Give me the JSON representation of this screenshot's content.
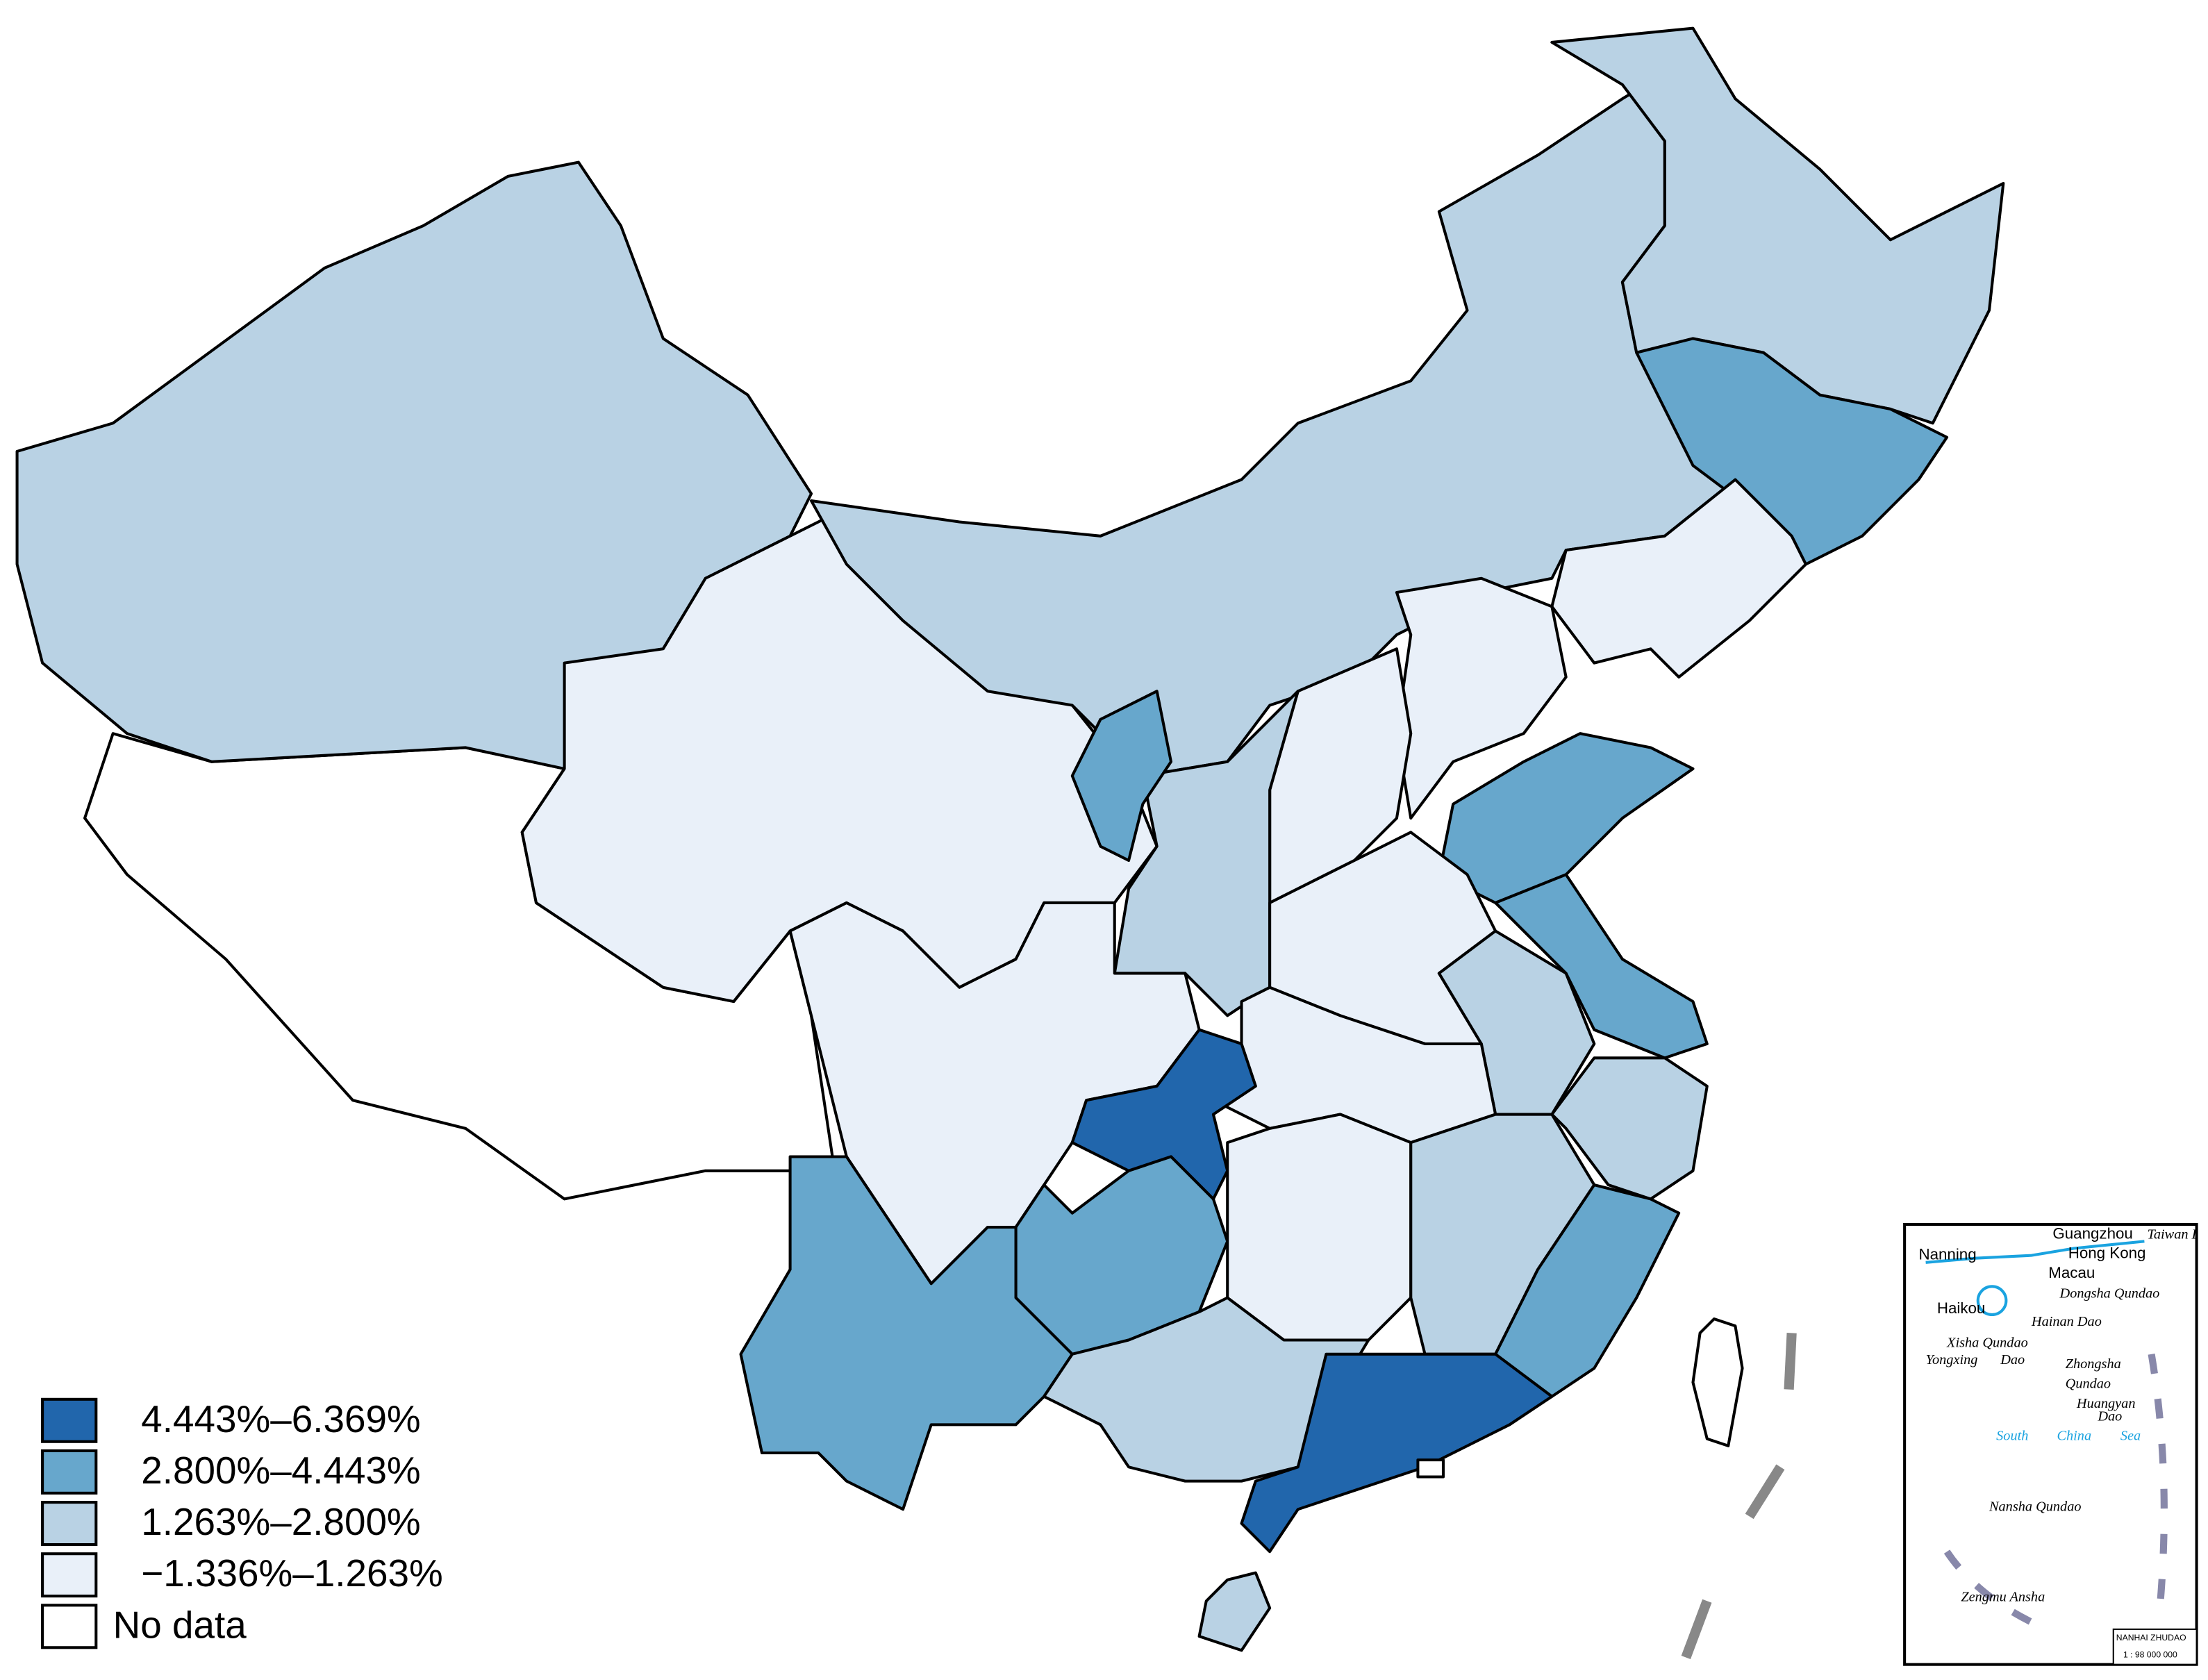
{
  "legend": {
    "items": [
      {
        "label": "4.443%–6.369%",
        "color": "#2166ac"
      },
      {
        "label": "2.800%–4.443%",
        "color": "#67a7cc"
      },
      {
        "label": "1.263%–2.800%",
        "color": "#b9d2e4"
      },
      {
        "label": "−1.336%–1.263%",
        "color": "#e9f0f9"
      },
      {
        "label": "No data",
        "color": "#ffffff"
      }
    ]
  },
  "inset": {
    "labels": [
      "Guangzhou",
      "Nanning",
      "Hong Kong",
      "Macau",
      "Taiwan Dao",
      "Haikou",
      "Hainan Dao",
      "Dongsha Qundao",
      "Xisha Qundao",
      "Yongxing",
      "Dao",
      "Zhongsha",
      "Qundao",
      "Huangyan",
      "Dao",
      "South",
      "China",
      "Sea",
      "Nansha Qundao",
      "Zengmu Ansha",
      "NANHAI ZHUDAO",
      "1 : 98 000 000"
    ]
  }
}
